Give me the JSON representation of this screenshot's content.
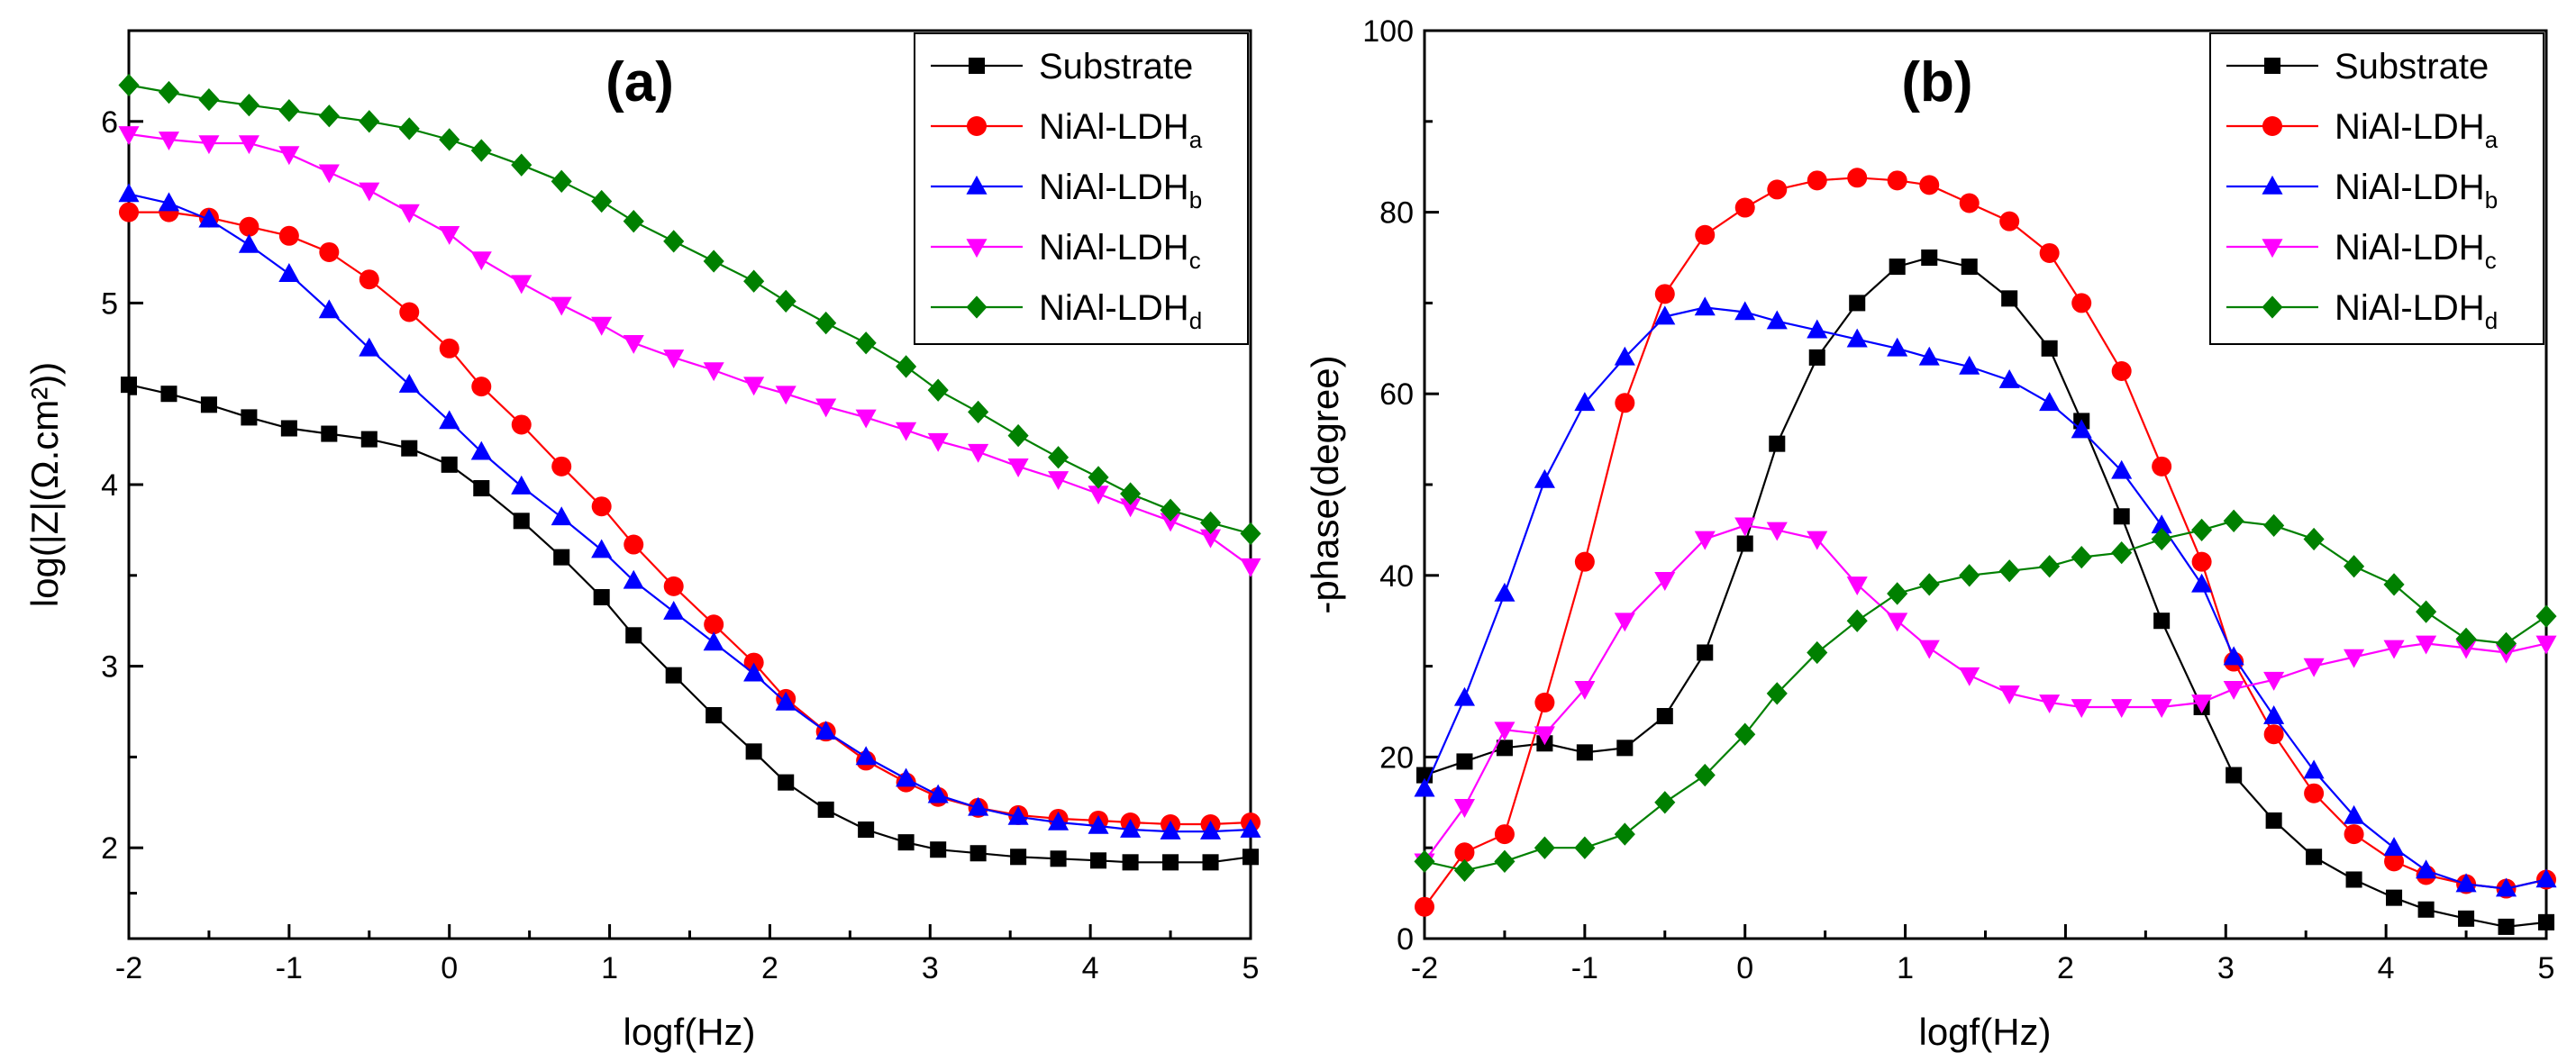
{
  "chart_data": [
    {
      "type": "line",
      "panel_label": "(a)",
      "xlabel": "logf(Hz)",
      "ylabel": "log(|Z|(Ω.cm²))",
      "xlim": [
        -2,
        5
      ],
      "ylim": [
        1.5,
        6.5
      ],
      "xticks": [
        "-2",
        "-1",
        "0",
        "1",
        "2",
        "3",
        "4",
        "5"
      ],
      "yticks": [
        "2",
        "3",
        "4",
        "5",
        "6"
      ],
      "legend_position": "top-right",
      "x": [
        -2.0,
        -1.75,
        -1.5,
        -1.25,
        -1.0,
        -0.75,
        -0.5,
        -0.25,
        0.0,
        0.2,
        0.45,
        0.7,
        0.95,
        1.15,
        1.4,
        1.65,
        1.9,
        2.1,
        2.35,
        2.6,
        2.85,
        3.05,
        3.3,
        3.55,
        3.8,
        4.05,
        4.25,
        4.5,
        4.75,
        5.0
      ],
      "series": [
        {
          "name": "Substrate",
          "name_main": "Substrate",
          "name_sub": "",
          "color": "#000000",
          "marker": "square",
          "values": [
            4.55,
            4.5,
            4.44,
            4.37,
            4.31,
            4.28,
            4.25,
            4.2,
            4.11,
            3.98,
            3.8,
            3.6,
            3.38,
            3.17,
            2.95,
            2.73,
            2.53,
            2.36,
            2.21,
            2.1,
            2.03,
            1.99,
            1.97,
            1.95,
            1.94,
            1.93,
            1.92,
            1.92,
            1.92,
            1.95
          ]
        },
        {
          "name": "NiAl-LDHa",
          "name_main": "NiAl-LDH",
          "name_sub": "a",
          "color": "#ff0000",
          "marker": "circle",
          "values": [
            5.5,
            5.5,
            5.47,
            5.42,
            5.37,
            5.28,
            5.13,
            4.95,
            4.75,
            4.54,
            4.33,
            4.1,
            3.88,
            3.67,
            3.44,
            3.23,
            3.02,
            2.82,
            2.64,
            2.48,
            2.36,
            2.28,
            2.22,
            2.18,
            2.16,
            2.15,
            2.14,
            2.13,
            2.13,
            2.14
          ]
        },
        {
          "name": "NiAl-LDHb",
          "name_main": "NiAl-LDH",
          "name_sub": "b",
          "color": "#0000ff",
          "marker": "triangle-up",
          "values": [
            5.6,
            5.55,
            5.46,
            5.32,
            5.16,
            4.96,
            4.75,
            4.55,
            4.35,
            4.18,
            3.99,
            3.82,
            3.64,
            3.47,
            3.3,
            3.13,
            2.96,
            2.8,
            2.64,
            2.5,
            2.38,
            2.29,
            2.22,
            2.17,
            2.14,
            2.12,
            2.1,
            2.09,
            2.09,
            2.1
          ]
        },
        {
          "name": "NiAl-LDHc",
          "name_main": "NiAl-LDH",
          "name_sub": "c",
          "color": "#ff00ff",
          "marker": "triangle-down",
          "values": [
            5.93,
            5.9,
            5.88,
            5.88,
            5.82,
            5.72,
            5.62,
            5.5,
            5.38,
            5.24,
            5.11,
            4.99,
            4.88,
            4.78,
            4.7,
            4.63,
            4.55,
            4.5,
            4.43,
            4.37,
            4.3,
            4.24,
            4.18,
            4.1,
            4.03,
            3.95,
            3.88,
            3.8,
            3.71,
            3.55
          ]
        },
        {
          "name": "NiAl-LDHd",
          "name_main": "NiAl-LDH",
          "name_sub": "d",
          "color": "#008000",
          "marker": "diamond",
          "values": [
            6.2,
            6.16,
            6.12,
            6.09,
            6.06,
            6.03,
            6.0,
            5.96,
            5.9,
            5.84,
            5.76,
            5.67,
            5.56,
            5.45,
            5.34,
            5.23,
            5.12,
            5.01,
            4.89,
            4.78,
            4.65,
            4.52,
            4.4,
            4.27,
            4.15,
            4.04,
            3.95,
            3.86,
            3.79,
            3.73
          ]
        }
      ]
    },
    {
      "type": "line",
      "panel_label": "(b)",
      "xlabel": "logf(Hz)",
      "ylabel": "-phase(degree)",
      "xlim": [
        -2,
        5
      ],
      "ylim": [
        0,
        100
      ],
      "xticks": [
        "-2",
        "-1",
        "0",
        "1",
        "2",
        "3",
        "4",
        "5"
      ],
      "yticks": [
        "0",
        "20",
        "40",
        "60",
        "80",
        "100"
      ],
      "legend_position": "top-right",
      "x": [
        -2.0,
        -1.75,
        -1.5,
        -1.25,
        -1.0,
        -0.75,
        -0.5,
        -0.25,
        0.0,
        0.2,
        0.45,
        0.7,
        0.95,
        1.15,
        1.4,
        1.65,
        1.9,
        2.1,
        2.35,
        2.6,
        2.85,
        3.05,
        3.3,
        3.55,
        3.8,
        4.05,
        4.25,
        4.5,
        4.75,
        5.0
      ],
      "series": [
        {
          "name": "Substrate",
          "name_main": "Substrate",
          "name_sub": "",
          "color": "#000000",
          "marker": "square",
          "values": [
            18,
            19.5,
            21,
            21.5,
            20.5,
            21,
            24.5,
            31.5,
            43.5,
            54.5,
            64,
            70,
            74,
            75,
            74,
            70.5,
            65,
            57,
            46.5,
            35,
            25.5,
            18,
            13,
            9,
            6.5,
            4.5,
            3.2,
            2.2,
            1.3,
            1.8
          ]
        },
        {
          "name": "NiAl-LDHa",
          "name_main": "NiAl-LDH",
          "name_sub": "a",
          "color": "#ff0000",
          "marker": "circle",
          "values": [
            3.5,
            9.5,
            11.5,
            26,
            41.5,
            59,
            71,
            77.5,
            80.5,
            82.5,
            83.5,
            83.8,
            83.5,
            83,
            81,
            79,
            75.5,
            70,
            62.5,
            52,
            41.5,
            30.5,
            22.5,
            16,
            11.5,
            8.5,
            7,
            6,
            5.5,
            6.5
          ]
        },
        {
          "name": "NiAl-LDHb",
          "name_main": "NiAl-LDH",
          "name_sub": "b",
          "color": "#0000ff",
          "marker": "triangle-up",
          "values": [
            16.5,
            26.5,
            38,
            50.5,
            59,
            64,
            68.5,
            69.5,
            69,
            68,
            67,
            66,
            65,
            64,
            63,
            61.5,
            59,
            56,
            51.5,
            45.5,
            39,
            31,
            24.5,
            18.5,
            13.5,
            10,
            7.5,
            6,
            5.5,
            6.5
          ]
        },
        {
          "name": "NiAl-LDHc",
          "name_main": "NiAl-LDH",
          "name_sub": "c",
          "color": "#ff00ff",
          "marker": "triangle-down",
          "values": [
            8.5,
            14.5,
            23,
            22.5,
            27.5,
            35,
            39.5,
            44,
            45.5,
            45,
            44,
            39,
            35,
            32,
            29,
            27,
            26,
            25.5,
            25.5,
            25.5,
            26,
            27.5,
            28.5,
            30,
            31,
            32,
            32.5,
            32,
            31.5,
            32.5
          ]
        },
        {
          "name": "NiAl-LDHd",
          "name_main": "NiAl-LDH",
          "name_sub": "d",
          "color": "#008000",
          "marker": "diamond",
          "values": [
            8.5,
            7.5,
            8.5,
            10,
            10,
            11.5,
            15,
            18,
            22.5,
            27,
            31.5,
            35,
            38,
            39,
            40,
            40.5,
            41,
            42,
            42.5,
            44,
            45,
            46,
            45.5,
            44,
            41,
            39,
            36,
            33,
            32.5,
            35.5
          ]
        }
      ]
    }
  ]
}
